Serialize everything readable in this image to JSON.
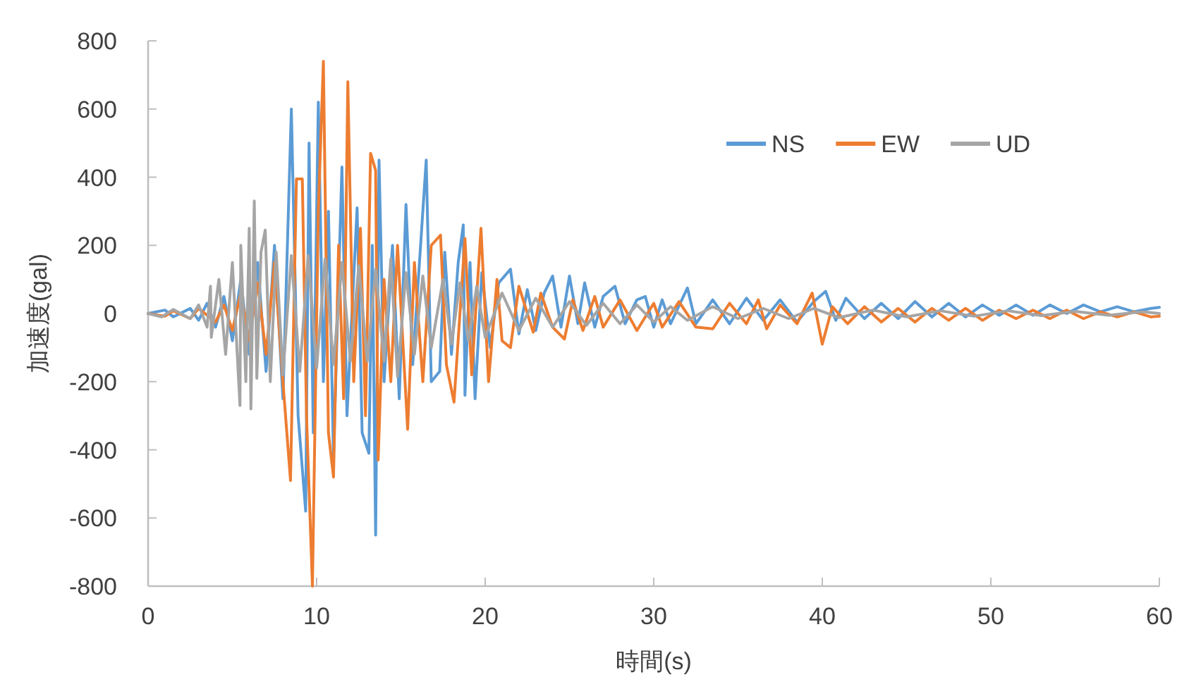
{
  "chart_data": {
    "type": "line",
    "xlabel": "時間(s)",
    "ylabel": "加速度(gal)",
    "xlim": [
      0,
      60
    ],
    "xticks": [
      0,
      10,
      20,
      30,
      40,
      50,
      60
    ],
    "ylim": [
      -800,
      800
    ],
    "yticks": [
      -800,
      -600,
      -400,
      -200,
      0,
      200,
      400,
      600,
      800
    ],
    "legend": "top right",
    "series": [
      {
        "name": "NS",
        "color": "#5b9bd5",
        "x": [
          0,
          1,
          1.5,
          2.5,
          3,
          3.5,
          4,
          4.5,
          5,
          5.5,
          6,
          6.5,
          7,
          7.5,
          8,
          8.5,
          8.9,
          9.35,
          9.55,
          9.8,
          10.1,
          10.4,
          10.7,
          11.0,
          11.5,
          11.8,
          12.4,
          12.7,
          13.1,
          13.3,
          13.5,
          13.7,
          14.0,
          14.5,
          14.9,
          15.3,
          15.7,
          16.1,
          16.5,
          16.8,
          17.3,
          17.6,
          18.0,
          18.4,
          18.7,
          18.8,
          19.1,
          19.4,
          19.8,
          20.3,
          20.8,
          21.5,
          22,
          22.5,
          23,
          23.5,
          24,
          24.5,
          25,
          25.5,
          25.9,
          26.5,
          27,
          27.7,
          28.3,
          29,
          29.5,
          30,
          30.5,
          31,
          32,
          32.5,
          33.5,
          34.5,
          35.5,
          36.5,
          37.5,
          38.5,
          39.5,
          40.2,
          40.8,
          41.4,
          42.5,
          43.5,
          44.5,
          45.5,
          46.5,
          47.5,
          48.5,
          49.5,
          50.5,
          51.5,
          52.5,
          53.5,
          54.5,
          55.5,
          56.5,
          57.5,
          58.5,
          59.5,
          60
        ],
        "values": [
          0,
          10,
          -10,
          15,
          -20,
          30,
          -40,
          50,
          -80,
          100,
          -120,
          150,
          -170,
          200,
          -250,
          600,
          -300,
          -580,
          500,
          -350,
          620,
          -200,
          300,
          -420,
          430,
          -300,
          310,
          -350,
          -410,
          200,
          -650,
          450,
          -200,
          200,
          -250,
          320,
          -150,
          150,
          450,
          -200,
          -170,
          180,
          -120,
          150,
          260,
          -240,
          150,
          -250,
          120,
          -100,
          90,
          130,
          -60,
          70,
          -50,
          60,
          110,
          -40,
          110,
          -30,
          90,
          -40,
          50,
          80,
          -30,
          40,
          50,
          -40,
          40,
          -30,
          75,
          -30,
          40,
          -30,
          45,
          -20,
          40,
          -25,
          35,
          65,
          -20,
          45,
          -15,
          30,
          -15,
          35,
          -10,
          30,
          -10,
          25,
          -5,
          25,
          -5,
          25,
          0,
          25,
          5,
          20,
          5,
          15,
          18
        ]
      },
      {
        "name": "EW",
        "color": "#ed7d31",
        "x": [
          0,
          1,
          1.5,
          2.5,
          3,
          4,
          4.5,
          5,
          5.5,
          6,
          6.5,
          7,
          7.5,
          8,
          8.45,
          8.8,
          9.15,
          9.4,
          9.75,
          10.1,
          10.4,
          10.7,
          11.0,
          11.3,
          11.6,
          11.85,
          12.2,
          12.6,
          12.9,
          13.2,
          13.5,
          13.65,
          14.0,
          14.4,
          14.8,
          15.4,
          15.8,
          16.3,
          16.8,
          17.35,
          17.7,
          18.15,
          18.8,
          19.2,
          19.75,
          20.2,
          20.7,
          21.0,
          21.5,
          22,
          22.85,
          23.3,
          24,
          24.7,
          25.2,
          25.8,
          26.5,
          27,
          28,
          29,
          30,
          30.5,
          31.5,
          32.5,
          33.5,
          34.5,
          35.5,
          36.2,
          36.7,
          37.5,
          38.5,
          39.4,
          40,
          40.6,
          41.5,
          42.5,
          43.5,
          44.5,
          45.5,
          46.5,
          47.5,
          48.5,
          49.5,
          50.5,
          51.5,
          52.5,
          53.5,
          54.5,
          55.5,
          56.5,
          57.5,
          58.5,
          59.5,
          60
        ],
        "values": [
          0,
          -8,
          8,
          -15,
          15,
          -25,
          25,
          -50,
          60,
          -80,
          90,
          -120,
          150,
          -200,
          -490,
          395,
          395,
          -300,
          -800,
          300,
          740,
          -350,
          -480,
          200,
          -250,
          680,
          -200,
          250,
          -300,
          470,
          420,
          -430,
          100,
          -200,
          200,
          -340,
          150,
          -200,
          200,
          230,
          -150,
          -260,
          220,
          -180,
          250,
          -200,
          100,
          -80,
          -100,
          80,
          -55,
          60,
          -40,
          -75,
          40,
          -50,
          50,
          -40,
          40,
          -50,
          30,
          -40,
          35,
          -40,
          -45,
          30,
          -30,
          40,
          -45,
          25,
          -30,
          60,
          -90,
          20,
          -30,
          20,
          -25,
          15,
          -25,
          15,
          -20,
          15,
          -20,
          10,
          -15,
          10,
          -15,
          10,
          -15,
          5,
          -10,
          5,
          -10,
          -8
        ]
      },
      {
        "name": "UD",
        "color": "#a5a5a5",
        "x": [
          0,
          0.8,
          1.5,
          2.5,
          3,
          3.5,
          3.7,
          3.75,
          4.2,
          4.6,
          5,
          5.45,
          5.5,
          5.8,
          6.0,
          6.1,
          6.3,
          6.45,
          6.7,
          6.95,
          7.25,
          7.6,
          8,
          8.5,
          9,
          9.5,
          10,
          10.5,
          11,
          11.5,
          12,
          12.5,
          13,
          13.5,
          14,
          14.4,
          14.8,
          15.3,
          15.8,
          16.3,
          16.8,
          17.5,
          18,
          18.5,
          19,
          19.5,
          20,
          21,
          22,
          23,
          24,
          25,
          26,
          27,
          28,
          29,
          30,
          31,
          32,
          33.5,
          35,
          36.5,
          38,
          39.5,
          41,
          43,
          45,
          47,
          49,
          51,
          53,
          55,
          57,
          59,
          60
        ],
        "values": [
          0,
          -10,
          12,
          -15,
          25,
          -40,
          80,
          -70,
          100,
          -120,
          150,
          -270,
          200,
          -200,
          250,
          -280,
          330,
          -190,
          180,
          245,
          -200,
          180,
          -180,
          170,
          -170,
          170,
          -160,
          160,
          -150,
          150,
          -140,
          140,
          -140,
          130,
          -140,
          160,
          -185,
          120,
          -120,
          110,
          -100,
          100,
          -90,
          90,
          -80,
          80,
          -70,
          60,
          -50,
          45,
          -40,
          35,
          -35,
          30,
          -30,
          25,
          -25,
          20,
          -20,
          20,
          -15,
          15,
          -15,
          15,
          -12,
          10,
          -10,
          8,
          -8,
          8,
          -6,
          6,
          -5,
          5,
          0
        ]
      }
    ]
  }
}
